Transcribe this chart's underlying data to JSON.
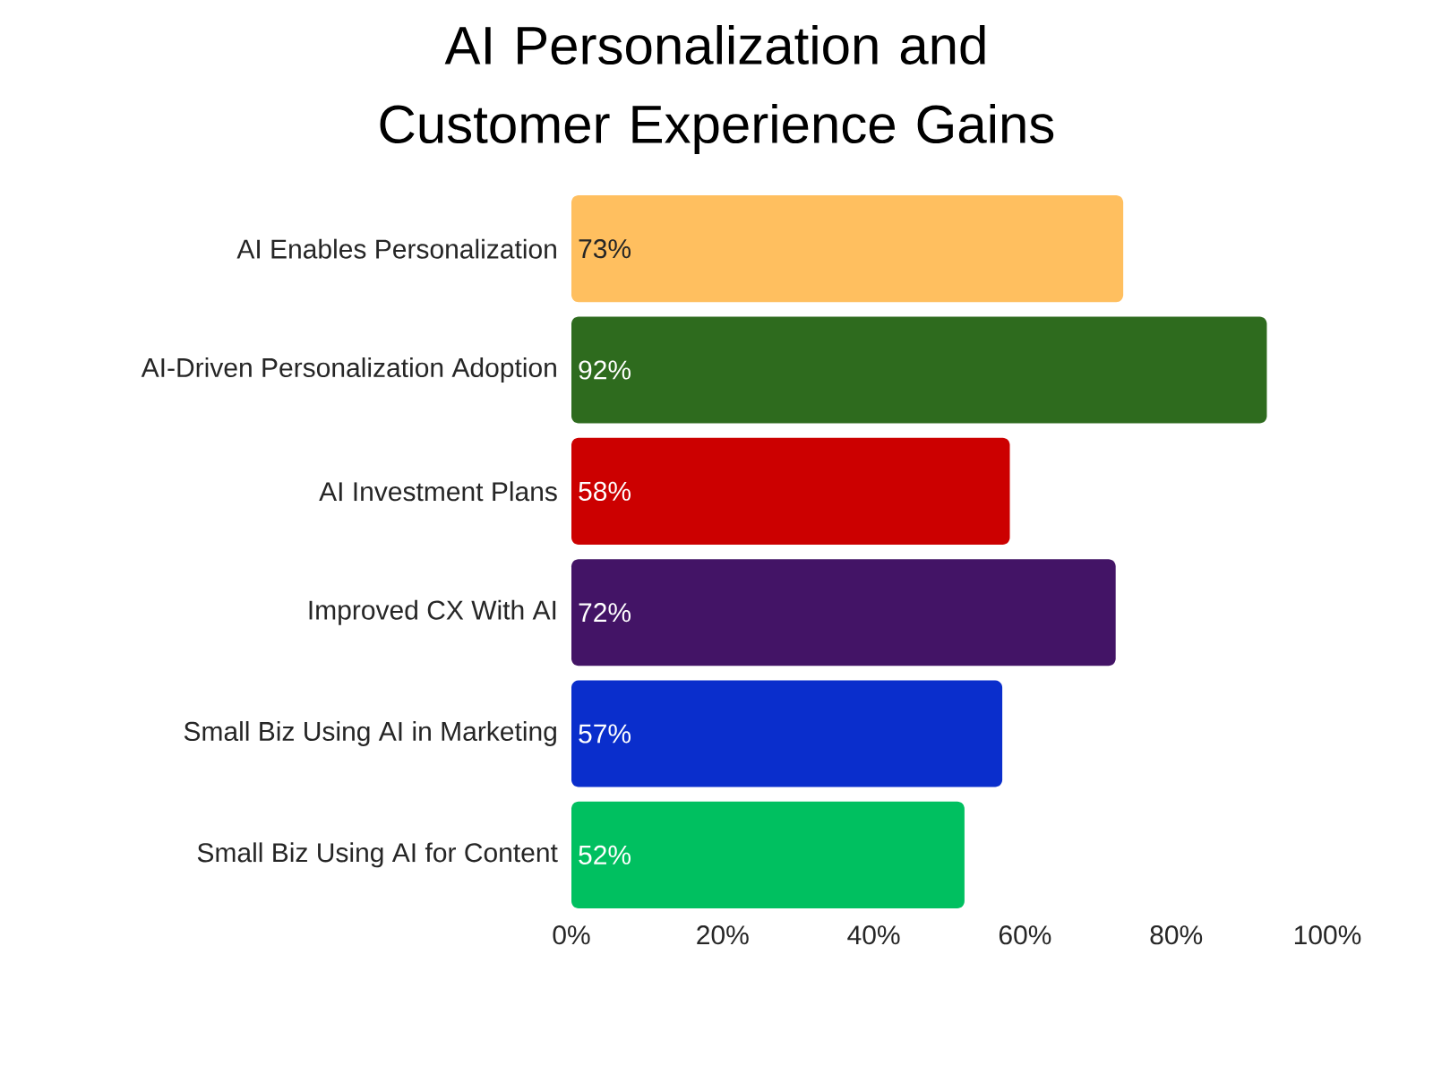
{
  "chart_data": {
    "type": "bar",
    "orientation": "horizontal",
    "title": "AI Personalization and Customer Experience Gains",
    "categories": [
      "AI Enables Personalization",
      "AI-Driven Personalization Adoption",
      "AI Investment Plans",
      "Improved CX With AI",
      "Small Biz Using AI in Marketing",
      "Small Biz Using AI for Content"
    ],
    "values": [
      73,
      92,
      58,
      72,
      57,
      52
    ],
    "colors": [
      "#ffbf5f",
      "#2e6b1e",
      "#cc0000",
      "#431466",
      "#0a2ecc",
      "#00c060"
    ],
    "value_labels": [
      "73%",
      "92%",
      "58%",
      "72%",
      "57%",
      "52%"
    ],
    "xlim": [
      0,
      100
    ],
    "xticks": [
      {
        "value": 0,
        "label": "0%"
      },
      {
        "value": 20,
        "label": "20%"
      },
      {
        "value": 40,
        "label": "40%"
      },
      {
        "value": 60,
        "label": "60%"
      },
      {
        "value": 80,
        "label": "80%"
      },
      {
        "value": 100,
        "label": "100%"
      }
    ]
  }
}
